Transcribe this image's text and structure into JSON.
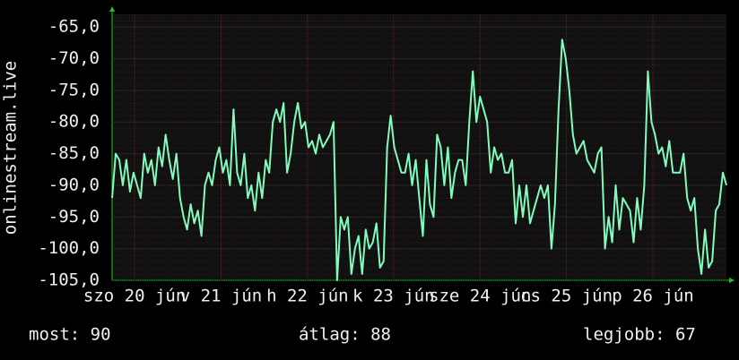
{
  "chart_data": {
    "type": "line",
    "ylabel": "onlinestream.live",
    "color": "#80fcbc",
    "values": [
      -92,
      -85,
      -86,
      -90,
      -86,
      -91,
      -88,
      -90,
      -92,
      -85,
      -88,
      -86,
      -90,
      -84,
      -87,
      -82,
      -86,
      -89,
      -85,
      -92,
      -95,
      -97,
      -93,
      -96,
      -94,
      -98,
      -90,
      -88,
      -90,
      -86,
      -84,
      -88,
      -86,
      -90,
      -78,
      -88,
      -90,
      -85,
      -92,
      -90,
      -94,
      -88,
      -92,
      -86,
      -88,
      -80,
      -78,
      -80,
      -77,
      -88,
      -85,
      -80,
      -77,
      -81,
      -80,
      -84,
      -83,
      -85,
      -82,
      -84,
      -83,
      -82,
      -80,
      -105,
      -95,
      -97,
      -95,
      -104,
      -100,
      -98,
      -104,
      -97,
      -100,
      -99,
      -96,
      -103,
      -102,
      -84,
      -79,
      -84,
      -86,
      -88,
      -88,
      -85,
      -90,
      -86,
      -92,
      -98,
      -86,
      -93,
      -95,
      -82,
      -84,
      -90,
      -84,
      -92,
      -88,
      -86,
      -86,
      -90,
      -80,
      -72,
      -80,
      -76,
      -78,
      -80,
      -88,
      -84,
      -86,
      -85,
      -88,
      -88,
      -86,
      -96,
      -90,
      -95,
      -90,
      -96,
      -94,
      -92,
      -90,
      -92,
      -90,
      -100,
      -93,
      -78,
      -67,
      -70,
      -75,
      -82,
      -85,
      -84,
      -83,
      -86,
      -87,
      -88,
      -85,
      -84,
      -100,
      -95,
      -99,
      -90,
      -97,
      -92,
      -93,
      -94,
      -99,
      -92,
      -97,
      -90,
      -72,
      -80,
      -82,
      -85,
      -84,
      -87,
      -83,
      -88,
      -88,
      -88,
      -85,
      -92,
      -94,
      -92,
      -100,
      -104,
      -97,
      -103,
      -102,
      -94,
      -93,
      -88,
      -90
    ],
    "xlim": [
      0,
      172
    ],
    "xticks": [
      {
        "value": 6.3,
        "label": "szo 20 jún"
      },
      {
        "value": 30.5,
        "label": "v 21 jún"
      },
      {
        "value": 54.7,
        "label": "h 22 jún"
      },
      {
        "value": 78.8,
        "label": "k 23 jún"
      },
      {
        "value": 103,
        "label": "sze 24 jún"
      },
      {
        "value": 127.2,
        "label": "cs 25 jún"
      },
      {
        "value": 151.4,
        "label": "p 26 jún"
      }
    ],
    "ylim": [
      -105,
      -63
    ],
    "yticks": [
      {
        "value": -105,
        "label": "-105,0"
      },
      {
        "value": -100,
        "label": "-100,0"
      },
      {
        "value": -95,
        "label": "-95,0"
      },
      {
        "value": -90,
        "label": "-90,0"
      },
      {
        "value": -85,
        "label": "-85,0"
      },
      {
        "value": -80,
        "label": "-80,0"
      },
      {
        "value": -75,
        "label": "-75,0"
      },
      {
        "value": -70,
        "label": "-70,0"
      },
      {
        "value": -65,
        "label": "-65,0"
      }
    ],
    "grid": true,
    "annotations": [
      "most: 90",
      "átlag: 88",
      "legjobb: 67"
    ]
  }
}
